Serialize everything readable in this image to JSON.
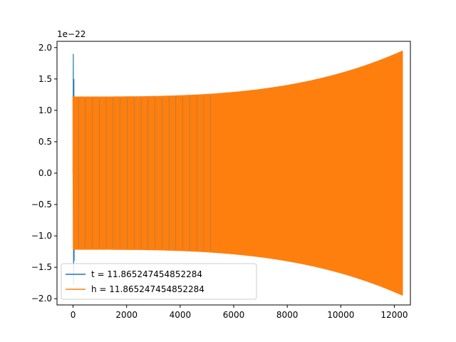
{
  "chart_data": {
    "type": "line",
    "offset_text": "1e−22",
    "x_ticks": [
      "0",
      "2000",
      "4000",
      "6000",
      "8000",
      "10000",
      "12000"
    ],
    "y_ticks": [
      "−2.0",
      "−1.5",
      "−1.0",
      "−0.5",
      "0.0",
      "0.5",
      "1.0",
      "1.5",
      "2.0"
    ],
    "xlim": [
      -600,
      12600
    ],
    "ylim": [
      -2.1,
      2.1
    ],
    "x_tick_values": [
      0,
      2000,
      4000,
      6000,
      8000,
      10000,
      12000
    ],
    "y_tick_values": [
      -2.0,
      -1.5,
      -1.0,
      -0.5,
      0.0,
      0.5,
      1.0,
      1.5,
      2.0
    ],
    "y_multiplier": 1e-22,
    "grid": false,
    "legend_position": "lower-left",
    "series": [
      {
        "name": "t = 11.865247454852284",
        "color": "#1f77b4",
        "x_range": [
          0,
          12300
        ],
        "peak_amplitude_start": 1.9,
        "envelope_amplitude_start": 1.22,
        "envelope_amplitude_end": 1.95
      },
      {
        "name": "h = 11.865247454852284",
        "color": "#ff7f0e",
        "x_range": [
          0,
          12300
        ],
        "envelope_amplitude_start": 1.22,
        "envelope_amplitude_end": 1.95
      }
    ]
  }
}
